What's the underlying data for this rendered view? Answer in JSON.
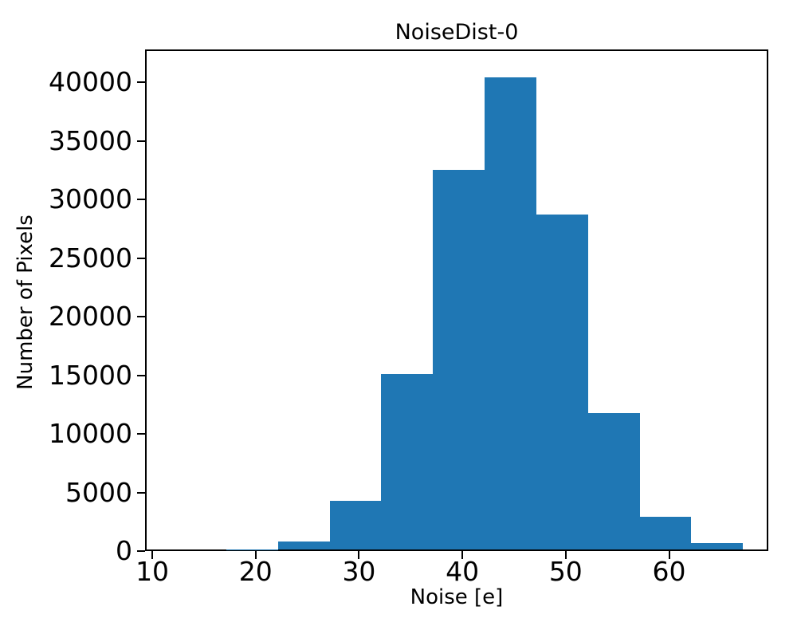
{
  "figure": {
    "background": "#ffffff",
    "text_color": "#000000"
  },
  "chart_data": {
    "type": "bar",
    "subtype": "histogram",
    "title": "NoiseDist-0",
    "xlabel": "Noise [e]",
    "ylabel": "Number of Pixels",
    "bin_edges": [
      17,
      22,
      27,
      32,
      37,
      42,
      47,
      52,
      57,
      62,
      67
    ],
    "counts": [
      150,
      800,
      4300,
      15100,
      32500,
      40400,
      28700,
      11750,
      2950,
      650
    ],
    "bar_color": "#1f77b4",
    "xticks": [
      10,
      20,
      30,
      40,
      50,
      60
    ],
    "yticks": [
      0,
      5000,
      10000,
      15000,
      20000,
      25000,
      30000,
      35000,
      40000
    ],
    "xlim": [
      9.3,
      69.6
    ],
    "ylim": [
      0,
      42800
    ],
    "grid": false,
    "legend": null
  }
}
